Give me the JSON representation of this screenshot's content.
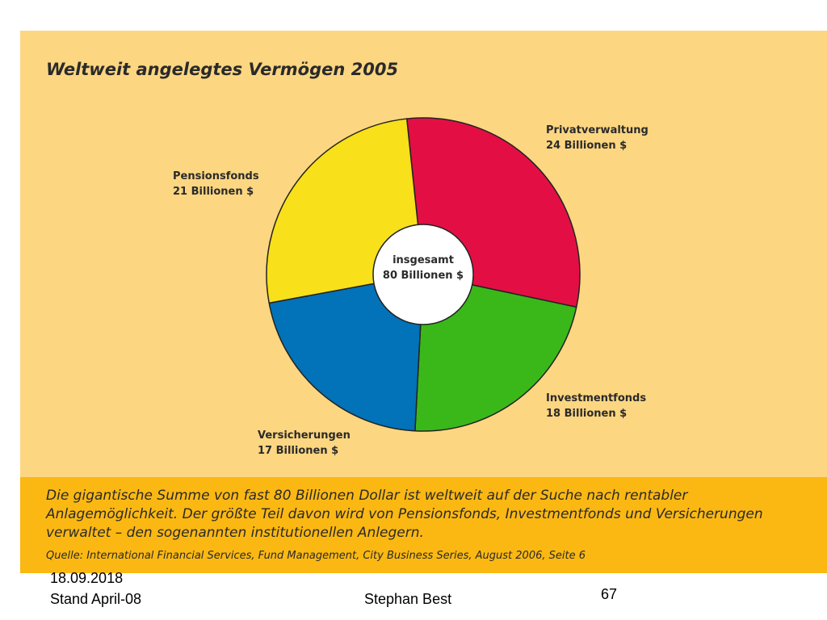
{
  "chart_data": {
    "type": "pie",
    "title": "Weltweit angelegtes Vermögen 2005",
    "center_label": [
      "insgesamt",
      "80 Billionen $"
    ],
    "slices": [
      {
        "name": "Privatverwaltung",
        "value": 24,
        "value_label": "24 Billionen $",
        "color": "#e30f44"
      },
      {
        "name": "Investmentfonds",
        "value": 18,
        "value_label": "18 Billionen $",
        "color": "#3ab81a"
      },
      {
        "name": "Versicherungen",
        "value": 17,
        "value_label": "17 Billionen $",
        "color": "#0272b9"
      },
      {
        "name": "Pensionsfonds",
        "value": 21,
        "value_label": "21 Billionen $",
        "color": "#f8e01a"
      }
    ]
  },
  "caption": {
    "lines": [
      "Die gigantische Summe von fast 80 Billionen Dollar ist weltweit auf der Suche nach rentabler",
      "Anlagemöglichkeit. Der größte Teil davon wird von Pensionsfonds, Investmentfonds und Versicherungen",
      "verwaltet – den sogenannten institutionellen Anlegern."
    ],
    "source": "Quelle: International Financial Services, Fund Management, City Business Series, August 2006, Seite 6"
  },
  "footer": {
    "date": "18.09.2018",
    "stand": "Stand April-08",
    "author": "Stephan Best",
    "page_number": "67"
  },
  "colors": {
    "panel_background": "#fcd681",
    "caption_background": "#fbb813"
  }
}
